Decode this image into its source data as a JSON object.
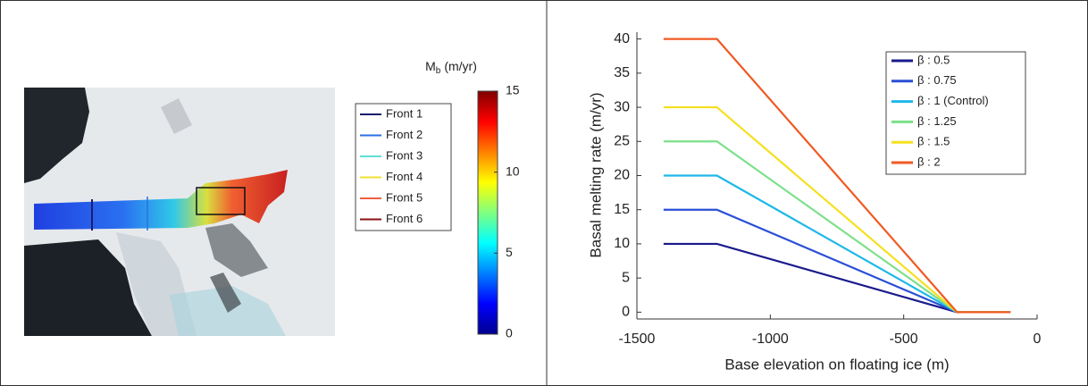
{
  "map": {
    "colorbar": {
      "symbol": "M",
      "subscript": "b",
      "unit": "(m/yr)",
      "lim": [
        0,
        15
      ],
      "ticks": [
        0,
        5,
        10,
        15
      ]
    },
    "fronts": [
      {
        "name": "Front 1",
        "color": "#1c1c6e"
      },
      {
        "name": "Front 2",
        "color": "#2b6fe6"
      },
      {
        "name": "Front 3",
        "color": "#5fe0d6"
      },
      {
        "name": "Front 4",
        "color": "#f2e030"
      },
      {
        "name": "Front 5",
        "color": "#f06040"
      },
      {
        "name": "Front 6",
        "color": "#8b1212"
      }
    ]
  },
  "chart_data": {
    "type": "line",
    "xlabel": "Base elevation on floating ice (m)",
    "ylabel": "Basal melting rate (m/yr)",
    "x": [
      -1400,
      -1200,
      -300,
      -100
    ],
    "series": [
      {
        "name": "β : 0.5",
        "color": "#1a1a8c",
        "values": [
          10,
          10,
          0,
          0
        ]
      },
      {
        "name": "β : 0.75",
        "color": "#2a4fd6",
        "values": [
          15,
          15,
          0,
          0
        ]
      },
      {
        "name": "β : 1 (Control)",
        "color": "#1fb8e8",
        "values": [
          20,
          20,
          0,
          0
        ]
      },
      {
        "name": "β : 1.25",
        "color": "#7de08a",
        "values": [
          25,
          25,
          0,
          0
        ]
      },
      {
        "name": "β : 1.5",
        "color": "#f5e020",
        "values": [
          30,
          30,
          0,
          0
        ]
      },
      {
        "name": "β : 2",
        "color": "#f05a23",
        "values": [
          40,
          40,
          0,
          0
        ]
      }
    ],
    "xlim": [
      -1500,
      0
    ],
    "xticks": [
      -1500,
      -1000,
      -500,
      0
    ],
    "ylim": [
      -1,
      41
    ],
    "yticks": [
      0,
      5,
      10,
      15,
      20,
      25,
      30,
      35,
      40
    ]
  }
}
